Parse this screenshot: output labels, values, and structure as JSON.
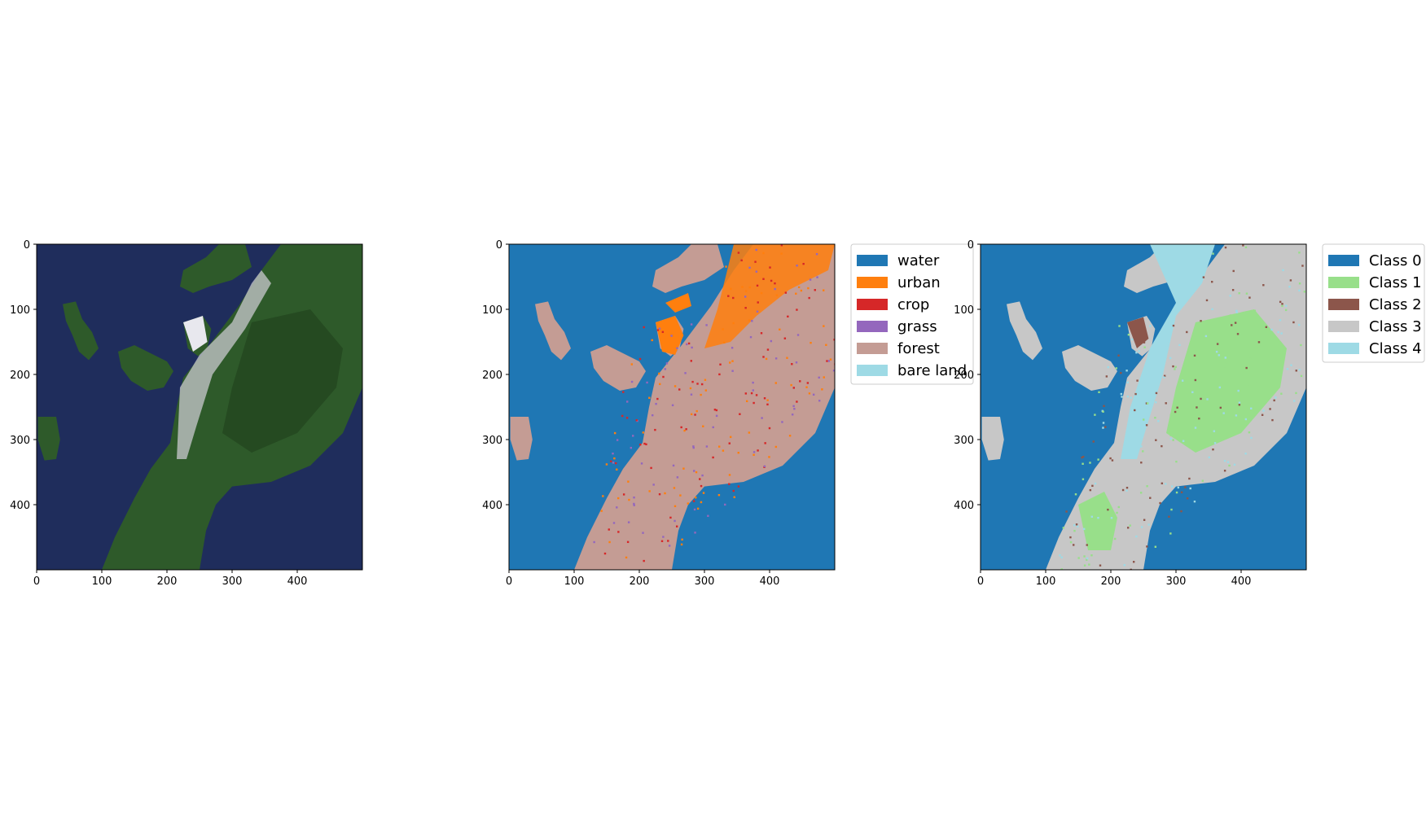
{
  "figure": {
    "background": "#ffffff"
  },
  "chart_data": [
    {
      "type": "heatmap",
      "content": "rgb satellite image",
      "xlim": [
        0,
        500
      ],
      "ylim": [
        500,
        0
      ],
      "xticks": [
        0,
        100,
        200,
        300,
        400
      ],
      "yticks": [
        0,
        100,
        200,
        300,
        400
      ],
      "colors": {
        "sea": "#1f2d5c",
        "land": "#2e5a2a",
        "urban": "#c9c9cf"
      }
    },
    {
      "type": "heatmap",
      "content": "land cover classification",
      "xlim": [
        0,
        500
      ],
      "ylim": [
        500,
        0
      ],
      "xticks": [
        0,
        100,
        200,
        300,
        400
      ],
      "yticks": [
        0,
        100,
        200,
        300,
        400
      ],
      "legend": {
        "placement": "outside right, top"
      },
      "classes": [
        {
          "label": "water",
          "color": "#1f77b4"
        },
        {
          "label": "urban",
          "color": "#ff7f0e"
        },
        {
          "label": "crop",
          "color": "#d62728"
        },
        {
          "label": "grass",
          "color": "#9467bd"
        },
        {
          "label": "forest",
          "color": "#c49c94"
        },
        {
          "label": "bare land",
          "color": "#9edae5"
        }
      ]
    },
    {
      "type": "heatmap",
      "content": "clustered classes",
      "xlim": [
        0,
        500
      ],
      "ylim": [
        500,
        0
      ],
      "xticks": [
        0,
        100,
        200,
        300,
        400
      ],
      "yticks": [
        0,
        100,
        200,
        300,
        400
      ],
      "legend": {
        "placement": "outside right, top"
      },
      "classes": [
        {
          "label": "Class 0",
          "color": "#1f77b4"
        },
        {
          "label": "Class 1",
          "color": "#98df8a"
        },
        {
          "label": "Class 2",
          "color": "#8c564b"
        },
        {
          "label": "Class 3",
          "color": "#c7c7c7"
        },
        {
          "label": "Class 4",
          "color": "#9edae5"
        }
      ]
    }
  ]
}
